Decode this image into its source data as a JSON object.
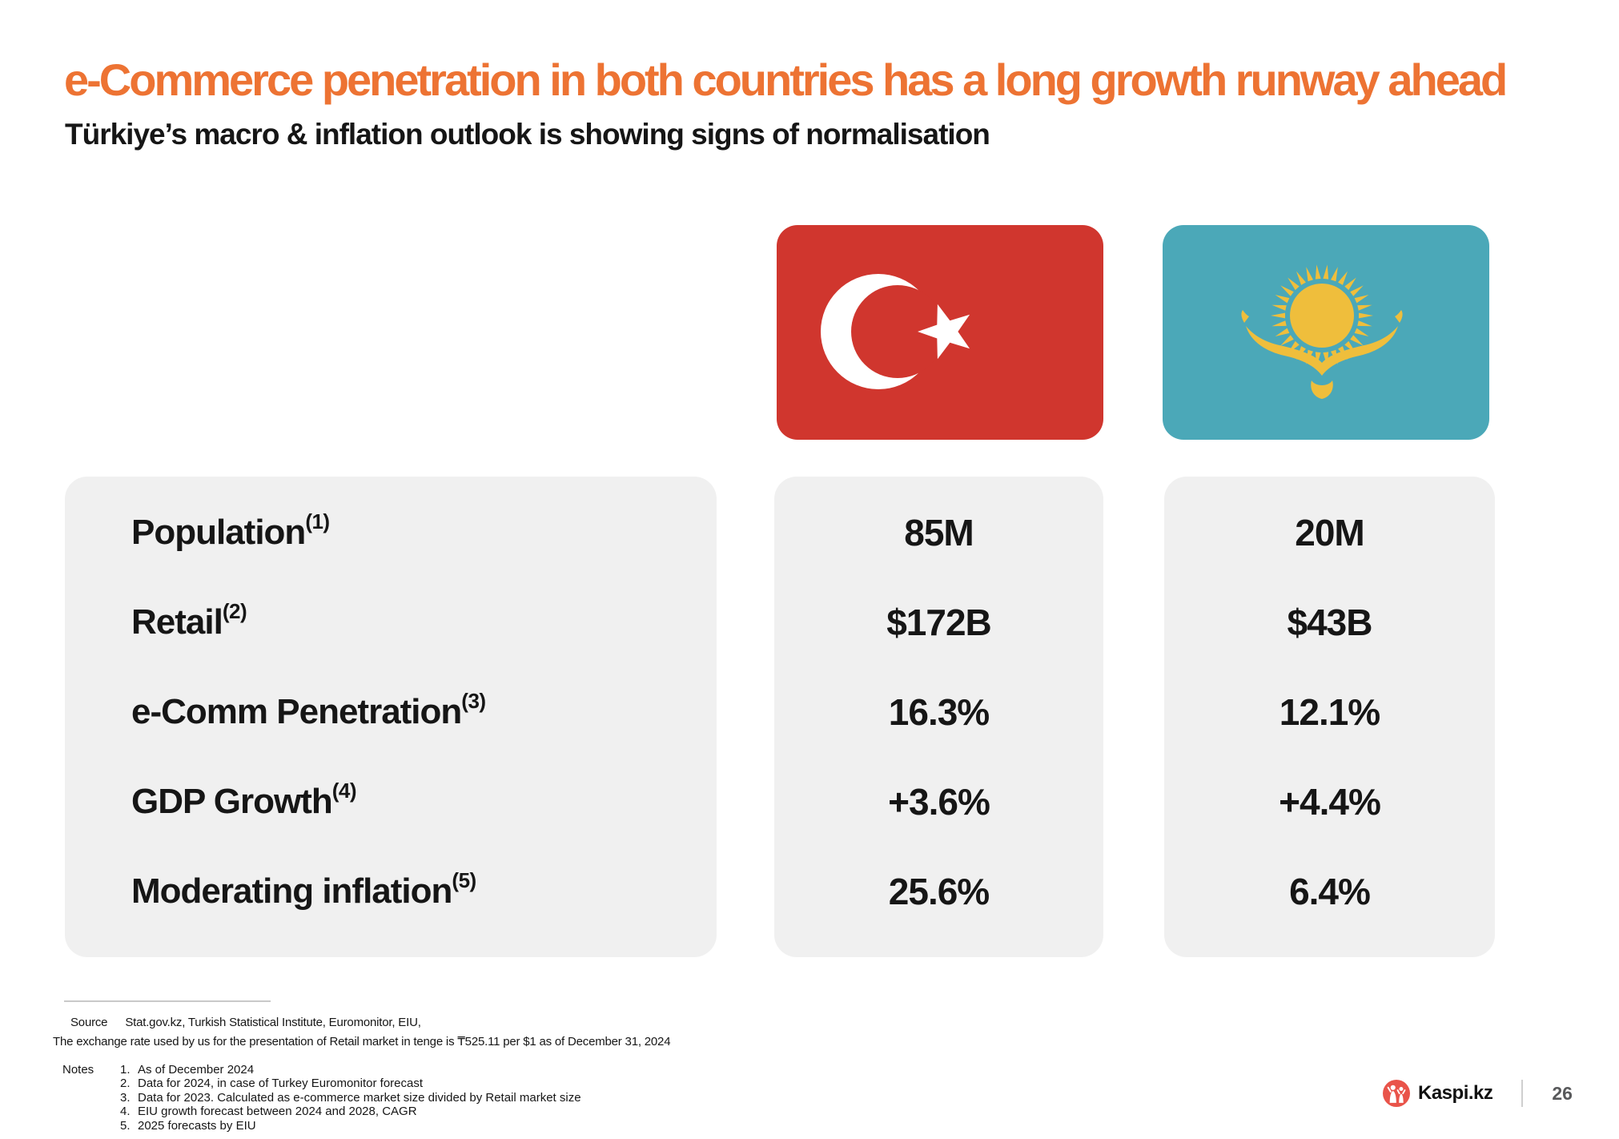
{
  "colors": {
    "accent_orange": "#ED7333",
    "text_black": "#161616",
    "panel_gray": "#F0F0F0",
    "turkiye_red": "#D0362E",
    "kazakh_teal": "#4BA8B8",
    "flag_gold": "#EFBE3C",
    "kaspi_red": "#E9544A",
    "muted_gray": "#58595B",
    "divider_gray": "#C9C9C9"
  },
  "slide": {
    "title": "e-Commerce penetration in both countries has a long growth runway ahead",
    "subtitle": "Türkiye’s macro & inflation outlook is showing signs of normalisation"
  },
  "flags": {
    "turkiye_icon": "turkiye-flag-icon",
    "kazakhstan_icon": "kazakhstan-flag-icon"
  },
  "table": {
    "rows": [
      {
        "label": "Population",
        "sup": "(1)",
        "turkiye": "85M",
        "kazakhstan": "20M"
      },
      {
        "label": "Retail",
        "sup": "(2)",
        "turkiye": "$172B",
        "kazakhstan": "$43B"
      },
      {
        "label": "e-Comm Penetration",
        "sup": "(3)",
        "turkiye": "16.3%",
        "kazakhstan": "12.1%"
      },
      {
        "label": "GDP Growth",
        "sup": "(4)",
        "turkiye": "+3.6%",
        "kazakhstan": "+4.4%"
      },
      {
        "label": "Moderating inflation ",
        "sup": "(5)",
        "turkiye": "25.6%",
        "kazakhstan": "6.4%"
      }
    ]
  },
  "footer": {
    "source_label": "Source",
    "source_text": "Stat.gov.kz, Turkish Statistical Institute, Euromonitor, EIU,",
    "exchange_note": "The exchange rate used by us for the presentation of Retail market in tenge is ₸525.11 per $1 as of December 31, 2024",
    "notes_label": "Notes",
    "notes": [
      "As of December 2024",
      "Data for 2024, in case of Turkey Euromonitor forecast",
      "Data for 2023. Calculated as e-commerce market size divided by Retail market size",
      "EIU growth forecast between 2024 and 2028, CAGR",
      "2025 forecasts by EIU"
    ],
    "brand": "Kaspi.kz",
    "page_number": "26"
  }
}
